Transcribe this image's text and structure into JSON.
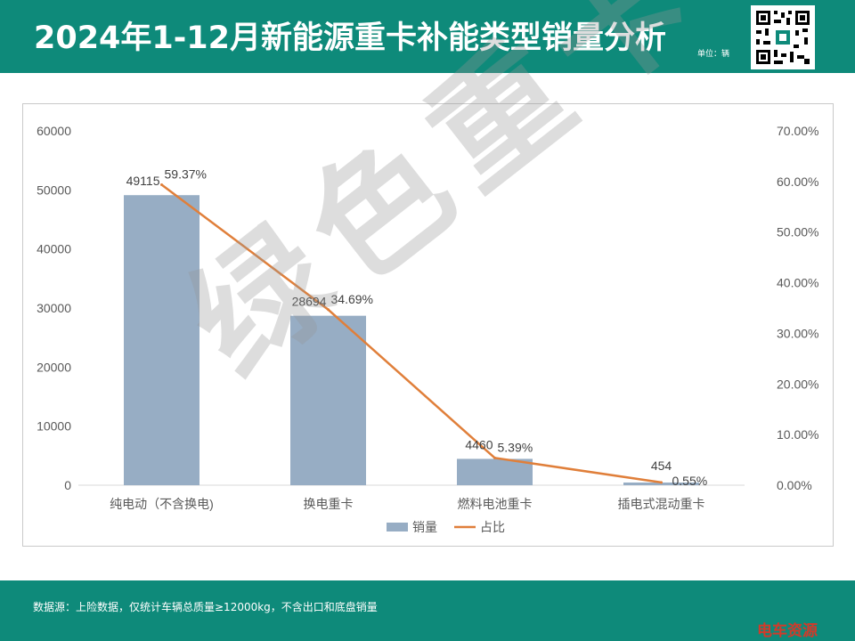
{
  "header": {
    "title": "2024年1-12月新能源重卡补能类型销量分析",
    "unit": "单位：辆"
  },
  "watermark": "绿色重卡",
  "footer": {
    "source": "数据源：上险数据，仅统计车辆总质量≥12000kg，不含出口和底盘销量",
    "brand": "电车资源"
  },
  "colors": {
    "header_bg": "#0e8a7a",
    "bar": "#97adc4",
    "line": "#e07f3a"
  },
  "chart_data": {
    "type": "bar",
    "categories": [
      "纯电动（不含换电)",
      "换电重卡",
      "燃料电池重卡",
      "插电式混动重卡"
    ],
    "series": [
      {
        "name": "销量",
        "type": "bar",
        "axis": "left",
        "values": [
          49115,
          28694,
          4460,
          454
        ],
        "labels": [
          "49115",
          "28694",
          "4460",
          "454"
        ]
      },
      {
        "name": "占比",
        "type": "line",
        "axis": "right",
        "values": [
          59.37,
          34.69,
          5.39,
          0.55
        ],
        "labels": [
          "59.37%",
          "34.69%",
          "5.39%",
          "0.55%"
        ]
      }
    ],
    "y_left": {
      "range": [
        0,
        60000
      ],
      "ticks": [
        "0",
        "10000",
        "20000",
        "30000",
        "40000",
        "50000",
        "60000"
      ]
    },
    "y_right": {
      "range": [
        0,
        70
      ],
      "ticks": [
        "0.00%",
        "10.00%",
        "20.00%",
        "30.00%",
        "40.00%",
        "50.00%",
        "60.00%",
        "70.00%"
      ]
    },
    "legend_position": "bottom",
    "grid": false
  }
}
